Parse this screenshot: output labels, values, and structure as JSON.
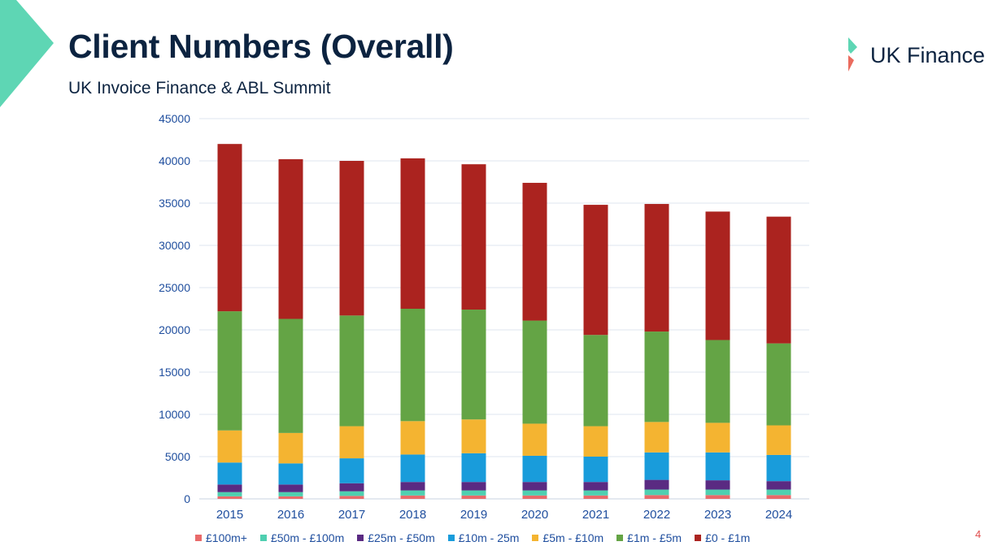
{
  "slide": {
    "title": "Client Numbers (Overall)",
    "subtitle": "UK Invoice Finance & ABL Summit",
    "logo_text": "UK Finance",
    "page_number": "4",
    "colors": {
      "title": "#0c2340",
      "accent": "#5ed6b4",
      "logo_green": "#5ed6b4",
      "logo_red": "#ea6b5e",
      "axis_text": "#1f4e9e"
    }
  },
  "chart_data": {
    "type": "bar",
    "stacked": true,
    "categories": [
      "2015",
      "2016",
      "2017",
      "2018",
      "2019",
      "2020",
      "2021",
      "2022",
      "2023",
      "2024"
    ],
    "ylim": [
      0,
      45000
    ],
    "yticks": [
      0,
      5000,
      10000,
      15000,
      20000,
      25000,
      30000,
      35000,
      40000,
      45000
    ],
    "grid": true,
    "legend_position": "bottom",
    "series": [
      {
        "name": "£100m+",
        "color": "#e96a6a",
        "values": [
          300,
          300,
          350,
          400,
          400,
          400,
          400,
          450,
          450,
          450
        ]
      },
      {
        "name": "£50m - £100m",
        "color": "#4fcfb0",
        "values": [
          500,
          500,
          550,
          600,
          600,
          600,
          600,
          650,
          650,
          650
        ]
      },
      {
        "name": "£25m - £50m",
        "color": "#5a2a82",
        "values": [
          900,
          900,
          950,
          1000,
          1000,
          1000,
          1000,
          1150,
          1100,
          1000
        ]
      },
      {
        "name": "£10m - 25m",
        "color": "#199cdb",
        "values": [
          2600,
          2500,
          2950,
          3250,
          3400,
          3100,
          3000,
          3250,
          3300,
          3100
        ]
      },
      {
        "name": "£5m - £10m",
        "color": "#f4b431",
        "values": [
          3800,
          3600,
          3800,
          3950,
          4000,
          3800,
          3600,
          3600,
          3500,
          3500
        ]
      },
      {
        "name": "£1m - £5m",
        "color": "#64a445",
        "values": [
          14100,
          13500,
          13100,
          13300,
          13000,
          12200,
          10800,
          10700,
          9800,
          9700
        ]
      },
      {
        "name": "£0 - £1m",
        "color": "#ab231f",
        "values": [
          19800,
          18900,
          18300,
          17800,
          17200,
          16300,
          15400,
          15100,
          15200,
          15000
        ]
      }
    ]
  }
}
